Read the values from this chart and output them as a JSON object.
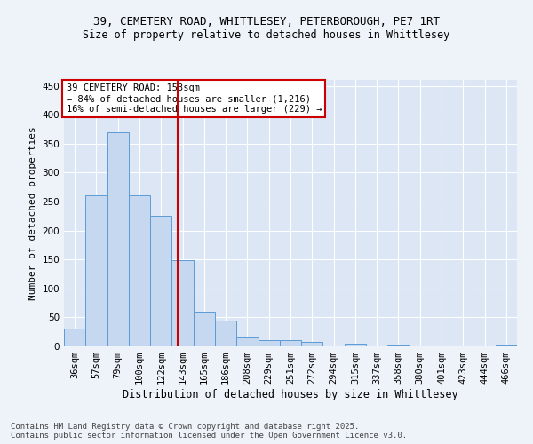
{
  "title_line1": "39, CEMETERY ROAD, WHITTLESEY, PETERBOROUGH, PE7 1RT",
  "title_line2": "Size of property relative to detached houses in Whittlesey",
  "xlabel": "Distribution of detached houses by size in Whittlesey",
  "ylabel": "Number of detached properties",
  "categories": [
    "36sqm",
    "57sqm",
    "79sqm",
    "100sqm",
    "122sqm",
    "143sqm",
    "165sqm",
    "186sqm",
    "208sqm",
    "229sqm",
    "251sqm",
    "272sqm",
    "294sqm",
    "315sqm",
    "337sqm",
    "358sqm",
    "380sqm",
    "401sqm",
    "423sqm",
    "444sqm",
    "466sqm"
  ],
  "values": [
    30,
    260,
    370,
    260,
    225,
    148,
    60,
    45,
    15,
    10,
    10,
    7,
    0,
    5,
    0,
    2,
    0,
    0,
    0,
    0,
    2
  ],
  "bar_color": "#c5d8f0",
  "bar_edge_color": "#5b9bd5",
  "vline_color": "#cc0000",
  "vline_pos": 4.78,
  "ylim": [
    0,
    460
  ],
  "yticks": [
    0,
    50,
    100,
    150,
    200,
    250,
    300,
    350,
    400,
    450
  ],
  "annotation_title": "39 CEMETERY ROAD: 153sqm",
  "annotation_line1": "← 84% of detached houses are smaller (1,216)",
  "annotation_line2": "16% of semi-detached houses are larger (229) →",
  "annotation_box_color": "#ffffff",
  "annotation_box_edge": "#cc0000",
  "fig_bg_color": "#eef2f9",
  "plot_bg_color": "#dce6f5",
  "footer_line1": "Contains HM Land Registry data © Crown copyright and database right 2025.",
  "footer_line2": "Contains public sector information licensed under the Open Government Licence v3.0.",
  "title1_fontsize": 9,
  "title2_fontsize": 8.5,
  "ylabel_fontsize": 8,
  "xlabel_fontsize": 8.5,
  "tick_fontsize": 7.5,
  "ann_fontsize": 7.5,
  "footer_fontsize": 6.5
}
